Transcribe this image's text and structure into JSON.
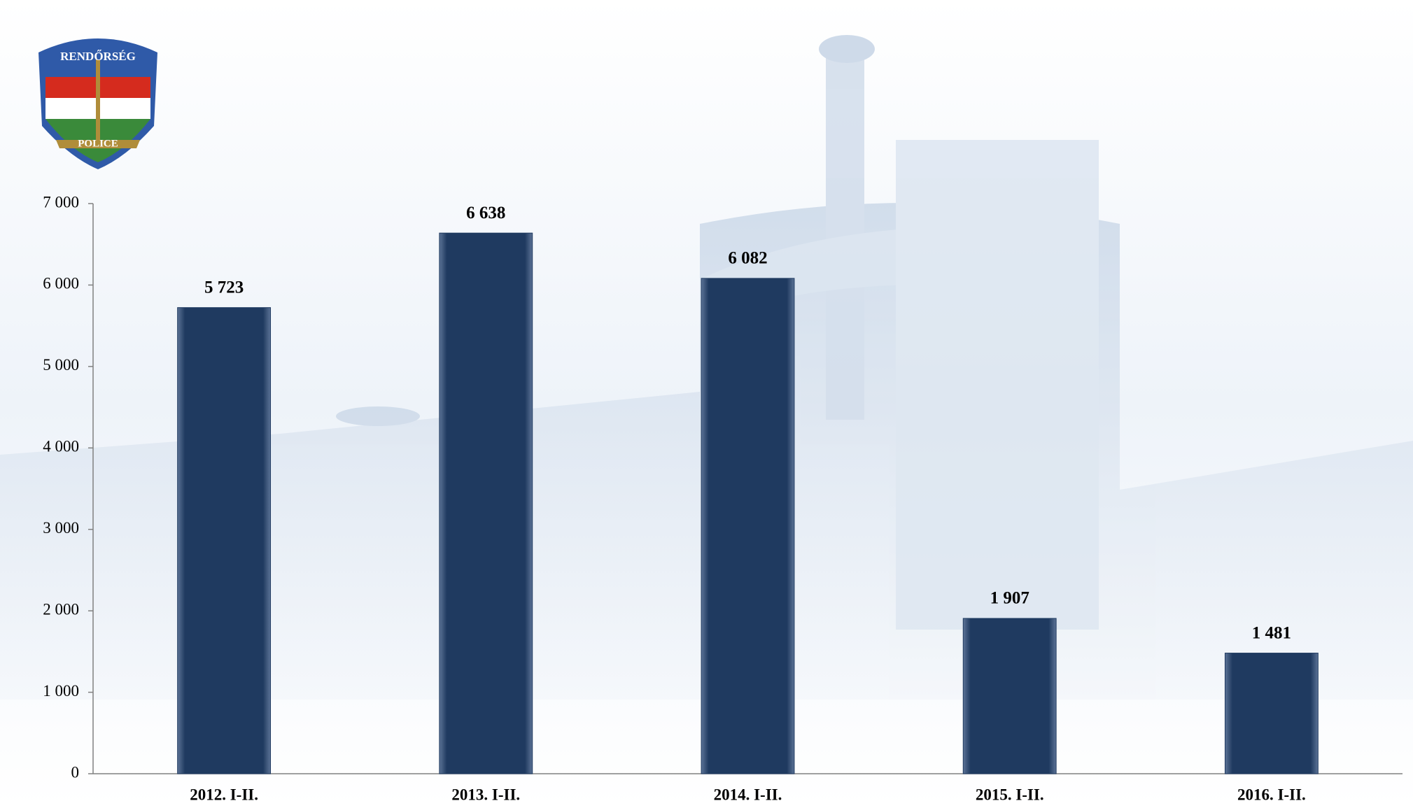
{
  "chart_data": {
    "type": "bar",
    "logo": {
      "top": "RENDŐRSÉG",
      "bottom": "POLICE"
    },
    "categories": [
      "2012. I-II.",
      "2013. I-II.",
      "2014. I-II.",
      "2015. I-II.",
      "2016. I-II."
    ],
    "values": [
      5723,
      6638,
      6082,
      1907,
      1481
    ],
    "value_labels": [
      "5 723",
      "6 638",
      "6 082",
      "1 907",
      "1 481"
    ],
    "color": "#1f3a60",
    "ylim": [
      0,
      7000
    ],
    "yticks": [
      0,
      {
        "value": 1000,
        "label": "1 000"
      },
      {
        "value": 2000,
        "label": "2 000"
      },
      {
        "value": 3000,
        "label": "3 000"
      },
      {
        "value": 4000,
        "label": "4 000"
      },
      {
        "value": 5000,
        "label": "5 000"
      },
      {
        "value": 6000,
        "label": "6 000"
      },
      {
        "value": 7000,
        "label": "7 000"
      }
    ],
    "grid": false
  }
}
